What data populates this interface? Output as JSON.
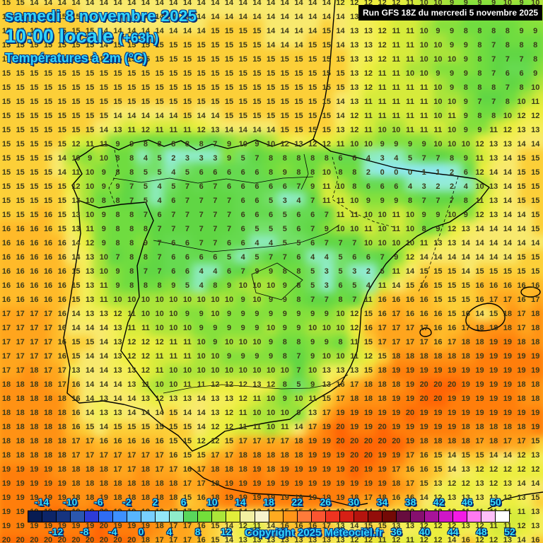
{
  "header": {
    "date_line": "samedi 8 novembre 2025",
    "time_line": "10:00 locale",
    "offset": "(+63h)",
    "subtitle": "Températures à 2m (°C)"
  },
  "run_box": {
    "label": "Run GFS 18Z du mercredi 5 novembre 2025"
  },
  "copyright": "Copyright 2025 Meteociel.fr",
  "grid": {
    "cols": 39,
    "rows": [
      "15 15 14 14 14 14 14 14 14 14 14 14 14 14 14 14 14 14 14 14 14 14 14 14 12 12 12 12 12 11 10 10 9 9 9 9 10 9 10",
      "15 15 15 15 15 15 14 14 14 14 14 14 14 14 14 14 14 14 14 14 14 14 14 14 14 13 12 12 11 11 11 10 10 9 9 9 9 9 10",
      "15 15 15 15 15 15 15 14 14 14 14 14 14 14 14 15 15 15 15 14 14 14 14 15 14 13 13 12 11 11 10 9 9 8 8 8 8 9 9",
      "15 15 15 15 15 15 15 14 15 15 15 15 15 15 15 15 15 15 15 14 14 14 15 15 14 13 13 12 11 11 10 10 9 9 8 7 8 8 8",
      "15 15 15 15 15 15 15 15 15 15 15 15 15 15 15 15 15 15 15 15 15 15 15 15 15 13 13 12 11 11 10 10 10 9 8 7 7 7 8",
      "15 15 15 15 15 15 15 15 15 15 15 15 15 15 15 15 15 15 15 15 15 15 15 15 15 13 12 11 11 10 10 9 9 9 8 7 6 6 9",
      "15 15 15 15 15 15 15 15 15 15 15 15 15 15 15 15 15 15 15 15 15 15 15 15 15 13 12 11 11 11 11 10 9 8 8 8 7 8 10",
      "15 15 15 15 15 15 15 15 15 15 15 15 15 15 15 15 15 15 15 15 15 15 15 15 14 13 11 11 11 11 11 10 10 9 7 7 8 10 11",
      "15 15 15 15 15 15 15 15 14 14 14 14 14 15 14 14 15 15 15 15 15 15 15 15 14 12 11 11 11 11 11 10 11 9 8 8 10 12 12",
      "15 15 15 15 15 15 15 14 13 11 12 11 11 11 12 13 14 14 14 14 15 15 15 15 13 12 11 10 10 11 11 11 10 9 9 11 12 13 13",
      "15 15 15 15 15 12 11 11 9 9 8 8 8 8 8 7 9 10 9 10 12 13 12 12 11 10 10 9 9 9 9 10 10 10 12 13 13 14 14",
      "15 15 15 15 14 10 9 10 8 8 4 5 2 3 3 3 9 5 7 8 8 8 8 8 6 6 4 3 4 5 7 7 8 9 11 13 14 15 15",
      "15 15 15 15 14 11 10 9 8 8 5 5 4 5 6 6 6 6 6 8 9 8 8 10 8 8 2 0 0 0 1 1 2 6 12 14 14 15 15",
      "15 15 15 15 15 12 10 9 9 7 5 4 5 7 6 7 6 6 6 6 6 7 9 11 10 8 6 6 6 4 3 2 2 4 10 13 14 15 15",
      "15 15 15 15 15 13 10 8 8 7 5 4 6 7 7 7 7 6 6 5 3 4 7 11 11 10 9 9 9 8 7 7 7 8 11 13 14 15 15",
      "15 15 15 16 15 13 10 9 8 8 7 6 7 7 7 7 7 6 6 6 5 6 6 7 11 11 10 10 11 10 9 9 10 9 12 13 14 14 15",
      "16 16 16 16 15 13 11 9 8 8 8 7 7 7 7 7 7 6 5 5 5 6 7 9 10 10 11 10 11 10 8 9 12 13 14 14 14 14 15",
      "16 16 16 16 16 14 12 9 8 8 9 7 6 6 7 7 6 6 4 4 5 5 6 7 7 7 10 10 10 10 11 13 13 14 14 14 14 14 14",
      "16 16 16 16 16 14 13 10 7 8 8 7 6 6 6 6 5 4 5 7 7 6 4 4 5 6 6 7 9 12 14 14 14 14 14 14 14 15 15",
      "16 16 16 16 16 15 13 10 9 8 7 7 6 6 4 4 6 7 9 9 8 8 5 3 5 3 2 6 11 14 15 15 15 14 15 15 15 15 15",
      "16 16 16 16 16 15 13 11 9 8 8 8 9 5 4 8 9 10 10 10 9 8 5 3 6 5 4 11 14 15 16 15 15 15 16 16 16 16 16",
      "16 16 16 16 16 15 13 11 10 10 10 10 10 10 10 10 10 9 10 9 9 8 7 7 8 7 11 16 16 16 16 15 15 15 16 17 17 16 17",
      "17 17 17 17 16 14 13 13 12 11 10 10 10 9 9 10 9 9 9 9 9 9 9 9 10 12 15 16 17 16 16 16 15 16 14 15 18 17 18",
      "17 17 17 17 16 14 14 14 13 11 11 10 10 10 9 9 9 9 9 10 9 9 10 10 10 12 16 17 17 17 17 16 16 17 18 18 18 17 18",
      "17 17 17 17 16 15 15 14 13 12 12 12 11 11 10 9 10 10 10 9 8 8 9 9 8 11 15 17 17 17 17 16 17 18 18 19 19 18 18",
      "17 17 17 17 16 15 14 14 13 12 12 11 11 11 10 10 9 9 9 9 8 7 9 10 10 11 12 15 18 18 18 18 18 18 19 19 19 19 19",
      "17 17 18 17 17 13 14 14 13 13 12 11 10 10 10 10 10 10 10 10 10 7 10 13 13 13 15 18 19 19 19 19 19 19 19 19 19 19 19",
      "18 18 18 18 17 16 14 14 14 13 11 10 10 11 11 12 12 12 13 12 8 5 9 13 16 17 18 18 18 19 20 20 20 19 19 19 19 18 18",
      "18 18 18 18 18 16 14 13 14 14 13 12 13 13 14 13 13 12 11 10 9 10 11 15 17 18 18 18 19 19 20 20 19 19 19 19 19 18 18",
      "18 18 18 18 18 16 14 13 13 14 14 14 15 14 14 13 12 11 10 10 10 9 13 17 19 19 19 19 19 20 19 19 19 19 19 19 19 19 19",
      "18 18 18 18 18 16 15 14 15 15 15 15 15 15 14 12 12 11 11 10 11 14 17 19 20 19 19 20 19 19 19 19 19 18 18 18 18 18 19",
      "18 18 18 18 18 17 17 16 16 16 16 16 15 15 12 12 15 17 17 17 17 18 19 19 20 20 20 20 20 19 18 18 18 18 17 18 17 17 15",
      "18 18 18 18 18 17 17 17 17 17 17 17 16 15 15 17 17 18 18 18 18 18 19 19 19 20 20 19 19 17 16 15 14 15 15 14 14 12 13",
      "19 19 19 19 18 18 18 18 17 17 18 17 17 16 17 18 18 18 19 18 19 19 19 19 19 20 19 19 17 16 16 15 14 13 12 12 12 12 12",
      "19 19 19 19 19 18 18 18 18 18 18 18 18 17 17 18 19 19 19 19 19 19 19 19 19 19 19 19 18 17 15 13 12 12 13 12 13 14 14",
      "19 19 19 19 19 18 18 19 18 18 18 18 18 15 16 18 19 19 19 19 19 19 19 19 19 18 17 18 16 16 14 12 13 13 13 13 12 13 15",
      "19 19 19 19 20 19 19 20 19 19 18 18 17 17 16 15 15 14 13 14 15 15 16 14 13 14 14 13 13 12 12 12 12 11 11 11 11 11 13",
      "19 19 19 19 19 19 19 20 19 19 19 18 17 17 16 15 14 12 11 14 16 16 16 17 13 14 15 15 13 13 12 12 12 13 12 11 11 12 13",
      "20 20 20 20 20 20 20 20 20 20 18 17 17 17 16 15 14 13 13 13 13 13 13 13 13 12 12 11 12 11 12 12 14 16 12 12 13 14 16"
    ]
  },
  "palette": {
    "low": "#8fe8f0",
    "2": "#93ecd8",
    "3": "#8feccb",
    "4": "#8cebbb",
    "5": "#74e068",
    "6": "#66da50",
    "7": "#60d644",
    "8": "#6fdc40",
    "9": "#84e03c",
    "10": "#aae43a",
    "11": "#d6eb3b",
    "12": "#ecee3e",
    "13": "#f4ee59",
    "14": "#f8e96e",
    "15": "#fccf38",
    "16": "#ffba29",
    "17": "#ffa51d",
    "18": "#ff9214",
    "19": "#ff7e0b",
    "20": "#ff6505",
    "high": "#ff5803"
  },
  "scale": {
    "colors": [
      "#081c52",
      "#0d2568",
      "#16347f",
      "#2b57ae",
      "#2d3bd8",
      "#2f6cf2",
      "#3e90ff",
      "#58b5ff",
      "#78cfff",
      "#93e6f7",
      "#8fecca",
      "#59d65b",
      "#73df3a",
      "#abe639",
      "#e2ed3a",
      "#f3f0a2",
      "#f7f3cc",
      "#ffab20",
      "#ff9418",
      "#ff7b3a",
      "#fa5530",
      "#ee3420",
      "#d62015",
      "#b5140e",
      "#930e0a",
      "#740a06",
      "#670d3e",
      "#86106e",
      "#a81399",
      "#cf17c7",
      "#f41ae6",
      "#ff7af0",
      "#ffc0f8",
      "#ffffff"
    ],
    "labels_top": [
      "-14",
      "-10",
      "-6",
      "-2",
      "2",
      "6",
      "10",
      "14",
      "18",
      "22",
      "26",
      "30",
      "34",
      "38",
      "42",
      "46",
      "50"
    ],
    "labels_bottom": [
      "-12",
      "-8",
      "-4",
      "0",
      "4",
      "8",
      "12",
      "16",
      "20",
      "24",
      "28",
      "32",
      "36",
      "40",
      "44",
      "48",
      "52"
    ]
  }
}
